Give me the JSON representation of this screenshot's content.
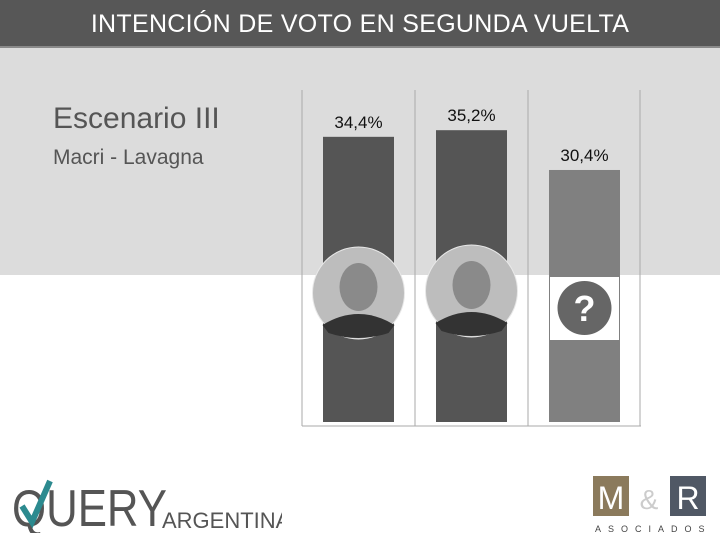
{
  "header": {
    "title": "INTENCIÓN DE VOTO EN SEGUNDA VUELTA"
  },
  "scenario": {
    "title": "Escenario III",
    "subtitle": "Macri - Lavagna"
  },
  "chart_data": {
    "type": "bar",
    "title": "INTENCIÓN DE VOTO EN SEGUNDA VUELTA",
    "categories": [
      "Macri",
      "Lavagna",
      "Indecisos"
    ],
    "values": [
      34.4,
      35.2,
      30.4
    ],
    "labels": [
      "34,4%",
      "35,2%",
      "30,4%"
    ],
    "colors": [
      "#555555",
      "#555555",
      "#808080"
    ],
    "ylim": [
      0,
      36
    ],
    "grid": false
  },
  "logos": {
    "left": {
      "main": "QUERY",
      "sub": "ARGENTINA"
    },
    "right": {
      "main_left": "M",
      "amp": "&",
      "main_right": "R",
      "sub": "ASOCIADOS"
    }
  }
}
